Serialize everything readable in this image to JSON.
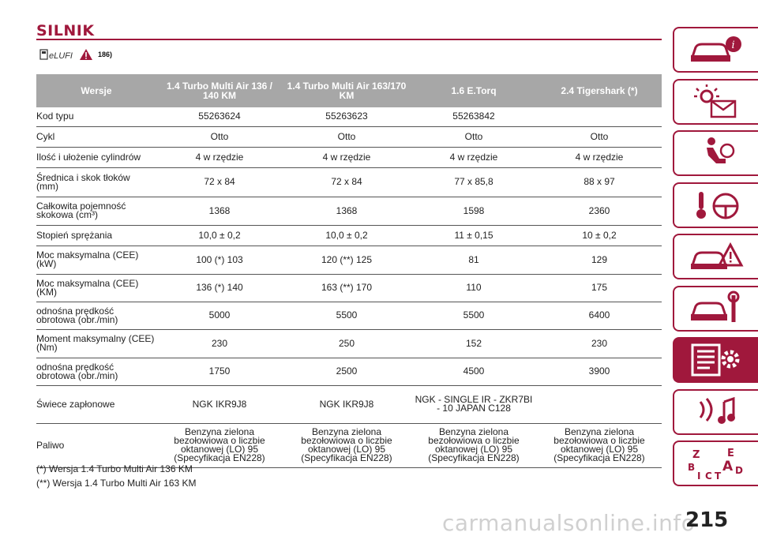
{
  "page": {
    "title": "SILNIK",
    "page_number": "215",
    "watermark": "carmanualsonline.info"
  },
  "icons": {
    "fuel_icon": "eLUFI",
    "reference": "186)"
  },
  "table": {
    "headers": [
      "Wersje",
      "1.4 Turbo Multi Air 136 / 140 KM",
      "1.4 Turbo Multi Air 163/170 KM",
      "1.6 E.Torq",
      "2.4 Tigershark (*)"
    ],
    "rows": [
      [
        "Kod typu",
        "55263624",
        "55263623",
        "55263842",
        ""
      ],
      [
        "Cykl",
        "Otto",
        "Otto",
        "Otto",
        "Otto"
      ],
      [
        "Ilość i ułożenie cylindrów",
        "4 w rzędzie",
        "4 w rzędzie",
        "4 w rzędzie",
        "4 w rzędzie"
      ],
      [
        "Średnica i skok tłoków (mm)",
        "72 x 84",
        "72 x 84",
        "77 x 85,8",
        "88 x 97"
      ],
      [
        "Całkowita pojemność skokowa (cm³)",
        "1368",
        "1368",
        "1598",
        "2360"
      ],
      [
        "Stopień sprężania",
        "10,0 ± 0,2",
        "10,0 ± 0,2",
        "11 ± 0,15",
        "10 ± 0,2"
      ],
      [
        "Moc maksymalna (CEE) (kW)",
        "100 (*) 103",
        "120 (**) 125",
        "81",
        "129"
      ],
      [
        "Moc maksymalna (CEE) (KM)",
        "136 (*) 140",
        "163 (**) 170",
        "110",
        "175"
      ],
      [
        "odnośna prędkość obrotowa (obr./min)",
        "5000",
        "5500",
        "5500",
        "6400"
      ],
      [
        "Moment maksymalny (CEE) (Nm)",
        "230",
        "250",
        "152",
        "230"
      ],
      [
        "odnośna prędkość obrotowa (obr./min)",
        "1750",
        "2500",
        "4500",
        "3900"
      ],
      [
        "Świece zapłonowe",
        "NGK IKR9J8",
        "NGK IKR9J8",
        "NGK - SINGLE IR - ZKR7BI - 10 JAPAN C128",
        ""
      ],
      [
        "Paliwo",
        "Benzyna zielona bezołowiowa o liczbie oktanowej (LO) 95 (Specyfikacja EN228)",
        "Benzyna zielona bezołowiowa o liczbie oktanowej (LO) 95 (Specyfikacja EN228)",
        "Benzyna zielona bezołowiowa o liczbie oktanowej (LO) 95 (Specyfikacja EN228)",
        "Benzyna zielona bezołowiowa o liczbie oktanowej (LO) 95 (Specyfikacja EN228)"
      ]
    ]
  },
  "footnotes": [
    "(*) Wersja 1.4 Turbo Multi Air 136 KM",
    "(**) Wersja 1.4 Turbo Multi Air 163 KM"
  ],
  "side_tabs": [
    {
      "icon": "car-info-icon",
      "active": false
    },
    {
      "icon": "warning-lights-icon",
      "active": false
    },
    {
      "icon": "airbag-seat-icon",
      "active": false
    },
    {
      "icon": "key-steering-icon",
      "active": false
    },
    {
      "icon": "accident-warning-icon",
      "active": false
    },
    {
      "icon": "car-service-icon",
      "active": false
    },
    {
      "icon": "technical-data-icon",
      "active": true
    },
    {
      "icon": "multimedia-icon",
      "active": false
    },
    {
      "icon": "alphabetical-index-icon",
      "active": false
    }
  ],
  "colors": {
    "accent": "#a0183c",
    "header_bg": "#a7a7a7"
  }
}
